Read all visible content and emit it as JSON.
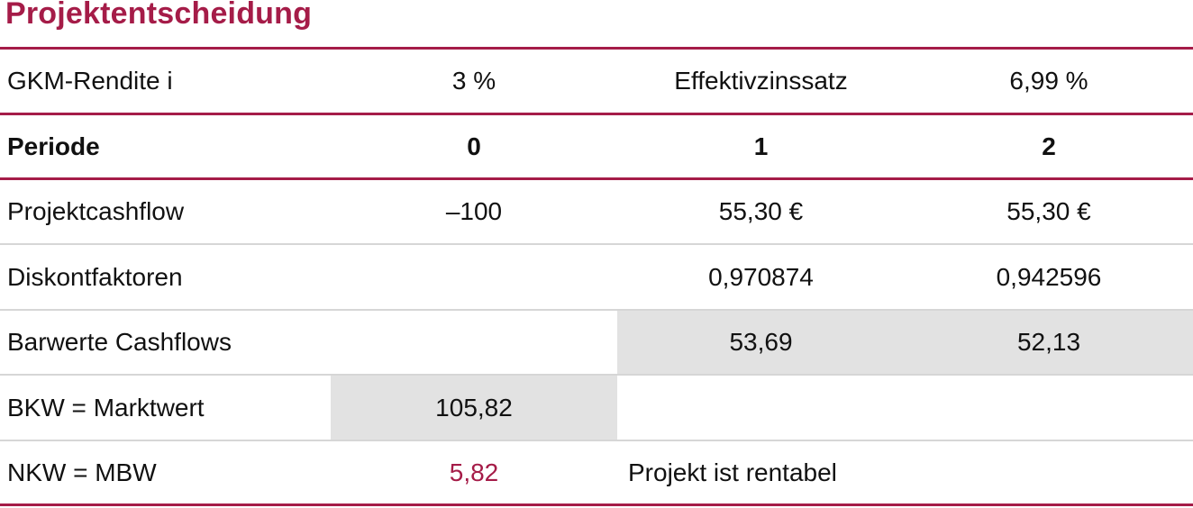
{
  "title": "Projektentscheidung",
  "colors": {
    "accent": "#a51c48",
    "highlight": "#e2e2e2",
    "divider": "#d6d6d6"
  },
  "rows": [
    {
      "label": "GKM-Rendite i",
      "c1": "3 %",
      "c2": "Effektivzinssatz",
      "c3": "6,99 %"
    },
    {
      "label": "Periode",
      "c1": "0",
      "c2": "1",
      "c3": "2"
    },
    {
      "label": "Projektcashflow",
      "c1": "–100",
      "c2": "55,30 €",
      "c3": "55,30 €"
    },
    {
      "label": "Diskontfaktoren",
      "c1": "",
      "c2": "0,970874",
      "c3": "0,942596"
    },
    {
      "label": "Barwerte Cashflows",
      "c1": "",
      "c2": "53,69",
      "c3": "52,13"
    },
    {
      "label": "BKW = Marktwert",
      "c1": "105,82",
      "c2": "",
      "c3": ""
    },
    {
      "label": "NKW = MBW",
      "c1": "5,82",
      "c2": "Projekt ist rentabel",
      "c3": ""
    }
  ]
}
